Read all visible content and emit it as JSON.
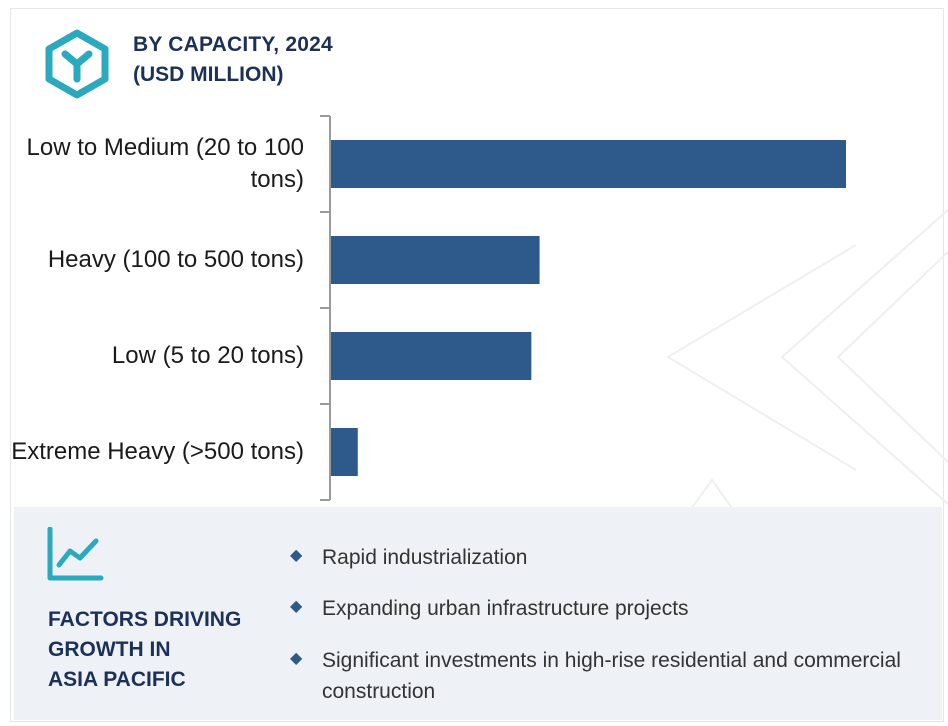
{
  "header": {
    "title": "BY CAPACITY, 2024",
    "subtitle": "(USD MILLION)",
    "icon": "cube-icon"
  },
  "colors": {
    "bar": "#2d5a8b",
    "title": "#1d3057",
    "panel_bg": "#eef1f6",
    "icon_teal": "#2aa9bf"
  },
  "chart_data": {
    "type": "bar",
    "orientation": "horizontal",
    "title": "BY CAPACITY, 2024",
    "subtitle": "(USD MILLION)",
    "categories": [
      "Low to Medium (20 to 100 tons)",
      "Heavy (100 to 500 tons)",
      "Low (5 to 20 tons)",
      "Extreme Heavy (>500 tons)"
    ],
    "values": [
      100,
      40.5,
      38.9,
      5.2
    ],
    "value_axis_shown": false,
    "grid": false,
    "legend": "none"
  },
  "factors": {
    "heading_lines": [
      "FACTORS DRIVING",
      "GROWTH IN",
      "ASIA PACIFIC"
    ],
    "icon": "line-chart-icon",
    "bullets": [
      "Rapid industrialization",
      "Expanding urban infrastructure projects",
      "Significant investments in high-rise residential and commercial construction"
    ]
  }
}
